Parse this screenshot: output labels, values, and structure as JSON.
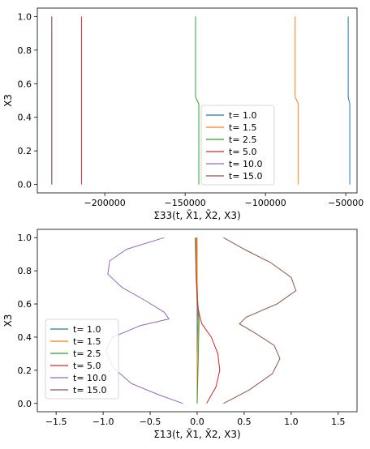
{
  "chart_data": [
    {
      "type": "line",
      "ylabel": "X3",
      "xlabel": "Σ33(t, X̄1, X̄2, X3)",
      "xlim": [
        -242000,
        -43000
      ],
      "ylim": [
        -0.05,
        1.05
      ],
      "xticks": [
        {
          "value": -200000,
          "label": "−200000"
        },
        {
          "value": -150000,
          "label": "−150000"
        },
        {
          "value": -100000,
          "label": "−100000"
        },
        {
          "value": -50000,
          "label": "−50000"
        }
      ],
      "yticks": [
        {
          "value": 0.0,
          "label": "0.0"
        },
        {
          "value": 0.2,
          "label": "0.2"
        },
        {
          "value": 0.4,
          "label": "0.4"
        },
        {
          "value": 0.6,
          "label": "0.6"
        },
        {
          "value": 0.8,
          "label": "0.8"
        },
        {
          "value": 1.0,
          "label": "1.0"
        }
      ],
      "legend": "lower-right",
      "series": [
        {
          "name": "t=  1.0",
          "color": "#1f77b4",
          "points": [
            [
              -47500,
              0.0
            ],
            [
              -47500,
              0.48
            ],
            [
              -48000,
              0.5
            ],
            [
              -48500,
              0.52
            ],
            [
              -48500,
              1.0
            ]
          ]
        },
        {
          "name": "t=  1.5",
          "color": "#ff7f0e",
          "points": [
            [
              -79500,
              0.0
            ],
            [
              -79500,
              0.48
            ],
            [
              -80500,
              0.5
            ],
            [
              -81500,
              0.52
            ],
            [
              -81500,
              1.0
            ]
          ]
        },
        {
          "name": "t=  2.5",
          "color": "#2ca02c",
          "points": [
            [
              -141500,
              0.0
            ],
            [
              -141500,
              0.48
            ],
            [
              -142500,
              0.5
            ],
            [
              -143500,
              0.52
            ],
            [
              -143500,
              1.0
            ]
          ]
        },
        {
          "name": "t=  5.0",
          "color": "#d62728",
          "points": [
            [
              -214500,
              0.0
            ],
            [
              -214500,
              0.5
            ],
            [
              -214500,
              1.0
            ]
          ]
        },
        {
          "name": "t= 10.0",
          "color": "#9467bd",
          "points": [
            [
              -233000,
              0.0
            ],
            [
              -233000,
              1.0
            ]
          ]
        },
        {
          "name": "t= 15.0",
          "color": "#8c564b",
          "points": [
            [
              -233000,
              0.0
            ],
            [
              -233000,
              1.0
            ]
          ]
        }
      ]
    },
    {
      "type": "line",
      "ylabel": "X3",
      "xlabel": "Σ13(t, X̄1, X̄2, X3)",
      "xlim": [
        -1.7,
        1.7
      ],
      "ylim": [
        -0.05,
        1.05
      ],
      "xticks": [
        {
          "value": -1.5,
          "label": "−1.5"
        },
        {
          "value": -1.0,
          "label": "−1.0"
        },
        {
          "value": -0.5,
          "label": "−0.5"
        },
        {
          "value": 0.0,
          "label": "0.0"
        },
        {
          "value": 0.5,
          "label": "0.5"
        },
        {
          "value": 1.0,
          "label": "1.0"
        },
        {
          "value": 1.5,
          "label": "1.5"
        }
      ],
      "yticks": [
        {
          "value": 0.0,
          "label": "0.0"
        },
        {
          "value": 0.2,
          "label": "0.2"
        },
        {
          "value": 0.4,
          "label": "0.4"
        },
        {
          "value": 0.6,
          "label": "0.6"
        },
        {
          "value": 0.8,
          "label": "0.8"
        },
        {
          "value": 1.0,
          "label": "1.0"
        }
      ],
      "legend": "lower-left",
      "series": [
        {
          "name": "t=  1.0",
          "color": "#1f77b4",
          "points": [
            [
              0.0,
              0.0
            ],
            [
              0.0,
              0.25
            ],
            [
              0.0,
              0.5
            ],
            [
              0.0,
              0.75
            ],
            [
              0.0,
              1.0
            ]
          ]
        },
        {
          "name": "t=  1.5",
          "color": "#ff7f0e",
          "points": [
            [
              0.0,
              0.0
            ],
            [
              0.0,
              0.25
            ],
            [
              0.01,
              0.5
            ],
            [
              0.0,
              0.75
            ],
            [
              0.0,
              1.0
            ]
          ]
        },
        {
          "name": "t=  2.5",
          "color": "#2ca02c",
          "points": [
            [
              0.0,
              0.0
            ],
            [
              0.01,
              0.25
            ],
            [
              0.02,
              0.5
            ],
            [
              -0.01,
              0.75
            ],
            [
              -0.02,
              1.0
            ]
          ]
        },
        {
          "name": "t=  5.0",
          "color": "#d62728",
          "points": [
            [
              0.1,
              0.0
            ],
            [
              0.2,
              0.1
            ],
            [
              0.24,
              0.2
            ],
            [
              0.22,
              0.3
            ],
            [
              0.15,
              0.4
            ],
            [
              0.05,
              0.48
            ],
            [
              0.03,
              0.52
            ],
            [
              0.0,
              0.6
            ],
            [
              -0.01,
              0.8
            ],
            [
              -0.01,
              1.0
            ]
          ]
        },
        {
          "name": "t= 10.0",
          "color": "#9467bd",
          "points": [
            [
              -0.15,
              0.0
            ],
            [
              -0.4,
              0.05
            ],
            [
              -0.7,
              0.12
            ],
            [
              -0.9,
              0.22
            ],
            [
              -0.97,
              0.32
            ],
            [
              -0.9,
              0.4
            ],
            [
              -0.6,
              0.47
            ],
            [
              -0.3,
              0.51
            ],
            [
              -0.35,
              0.55
            ],
            [
              -0.55,
              0.62
            ],
            [
              -0.8,
              0.7
            ],
            [
              -0.95,
              0.78
            ],
            [
              -0.93,
              0.86
            ],
            [
              -0.75,
              0.93
            ],
            [
              -0.35,
              1.0
            ]
          ]
        },
        {
          "name": "t= 15.0",
          "color": "#8c564b",
          "points": [
            [
              0.28,
              0.0
            ],
            [
              0.55,
              0.08
            ],
            [
              0.8,
              0.18
            ],
            [
              0.88,
              0.27
            ],
            [
              0.82,
              0.35
            ],
            [
              0.6,
              0.43
            ],
            [
              0.45,
              0.48
            ],
            [
              0.52,
              0.52
            ],
            [
              0.85,
              0.6
            ],
            [
              1.05,
              0.68
            ],
            [
              1.0,
              0.76
            ],
            [
              0.78,
              0.85
            ],
            [
              0.5,
              0.93
            ],
            [
              0.28,
              1.0
            ]
          ]
        }
      ]
    }
  ]
}
